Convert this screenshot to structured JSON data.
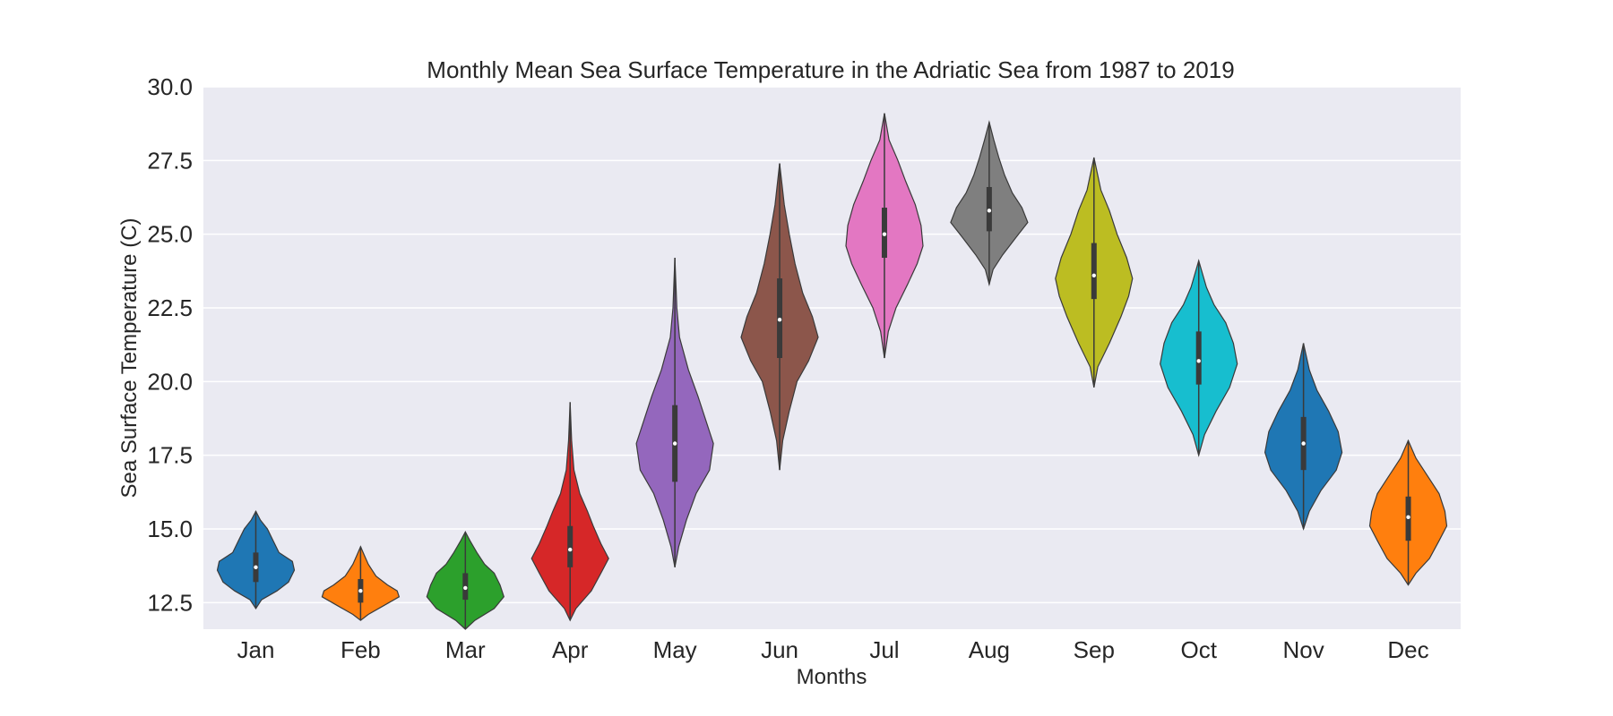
{
  "chart_data": {
    "type": "violin",
    "title": "Monthly Mean Sea Surface Temperature in the Adriatic Sea from 1987 to 2019",
    "xlabel": "Months",
    "ylabel": "Sea Surface Temperature (C)",
    "ylim": [
      11.6,
      30.0
    ],
    "yticks": [
      "12.5",
      "15.0",
      "17.5",
      "20.0",
      "22.5",
      "25.0",
      "27.5",
      "30.0"
    ],
    "grid": true,
    "categories": [
      "Jan",
      "Feb",
      "Mar",
      "Apr",
      "May",
      "Jun",
      "Jul",
      "Aug",
      "Sep",
      "Oct",
      "Nov",
      "Dec"
    ],
    "colors": [
      "#1f77b4",
      "#ff7f0e",
      "#2ca02c",
      "#d62728",
      "#9467bd",
      "#8c564b",
      "#e377c2",
      "#7f7f7f",
      "#bcbd22",
      "#17becf",
      "#1f77b4",
      "#ff7f0e"
    ],
    "series": [
      {
        "month": "Jan",
        "min": 12.3,
        "q1": 13.2,
        "median": 13.7,
        "q3": 14.2,
        "max": 15.6,
        "profile": [
          [
            12.3,
            0
          ],
          [
            12.6,
            0.15
          ],
          [
            12.9,
            0.55
          ],
          [
            13.2,
            0.85
          ],
          [
            13.6,
            1.0
          ],
          [
            13.9,
            0.95
          ],
          [
            14.2,
            0.6
          ],
          [
            14.6,
            0.45
          ],
          [
            15.0,
            0.3
          ],
          [
            15.3,
            0.12
          ],
          [
            15.6,
            0
          ]
        ]
      },
      {
        "month": "Feb",
        "min": 11.9,
        "q1": 12.5,
        "median": 12.9,
        "q3": 13.3,
        "max": 14.4,
        "profile": [
          [
            11.9,
            0
          ],
          [
            12.1,
            0.2
          ],
          [
            12.4,
            0.6
          ],
          [
            12.7,
            1.0
          ],
          [
            12.9,
            0.95
          ],
          [
            13.1,
            0.7
          ],
          [
            13.4,
            0.4
          ],
          [
            13.8,
            0.2
          ],
          [
            14.1,
            0.1
          ],
          [
            14.4,
            0
          ]
        ]
      },
      {
        "month": "Mar",
        "min": 11.6,
        "q1": 12.6,
        "median": 13.0,
        "q3": 13.5,
        "max": 14.9,
        "profile": [
          [
            11.6,
            0
          ],
          [
            11.9,
            0.25
          ],
          [
            12.3,
            0.75
          ],
          [
            12.7,
            1.0
          ],
          [
            13.1,
            0.9
          ],
          [
            13.5,
            0.75
          ],
          [
            13.8,
            0.5
          ],
          [
            14.2,
            0.3
          ],
          [
            14.6,
            0.12
          ],
          [
            14.9,
            0
          ]
        ]
      },
      {
        "month": "Apr",
        "min": 11.9,
        "q1": 13.7,
        "median": 14.3,
        "q3": 15.1,
        "max": 19.3,
        "profile": [
          [
            11.9,
            0
          ],
          [
            12.3,
            0.15
          ],
          [
            12.9,
            0.55
          ],
          [
            13.5,
            0.8
          ],
          [
            14.0,
            1.0
          ],
          [
            14.5,
            0.8
          ],
          [
            15.1,
            0.6
          ],
          [
            15.6,
            0.45
          ],
          [
            16.2,
            0.25
          ],
          [
            17.0,
            0.1
          ],
          [
            18.0,
            0.04
          ],
          [
            19.3,
            0
          ]
        ]
      },
      {
        "month": "May",
        "min": 13.7,
        "q1": 16.6,
        "median": 17.9,
        "q3": 19.2,
        "max": 24.2,
        "profile": [
          [
            13.7,
            0
          ],
          [
            14.4,
            0.1
          ],
          [
            15.3,
            0.3
          ],
          [
            16.2,
            0.55
          ],
          [
            17.0,
            0.9
          ],
          [
            17.9,
            1.0
          ],
          [
            18.7,
            0.8
          ],
          [
            19.5,
            0.6
          ],
          [
            20.4,
            0.35
          ],
          [
            21.5,
            0.12
          ],
          [
            22.5,
            0.05
          ],
          [
            24.2,
            0
          ]
        ]
      },
      {
        "month": "Jun",
        "min": 17.0,
        "q1": 20.8,
        "median": 22.1,
        "q3": 23.5,
        "max": 27.4,
        "profile": [
          [
            17.0,
            0
          ],
          [
            18.0,
            0.08
          ],
          [
            19.0,
            0.25
          ],
          [
            20.0,
            0.45
          ],
          [
            20.7,
            0.75
          ],
          [
            21.5,
            1.0
          ],
          [
            22.2,
            0.85
          ],
          [
            23.0,
            0.6
          ],
          [
            24.0,
            0.4
          ],
          [
            25.0,
            0.25
          ],
          [
            26.0,
            0.12
          ],
          [
            27.4,
            0
          ]
        ]
      },
      {
        "month": "Jul",
        "min": 20.8,
        "q1": 24.2,
        "median": 25.0,
        "q3": 25.9,
        "max": 29.1,
        "profile": [
          [
            20.8,
            0
          ],
          [
            21.7,
            0.1
          ],
          [
            22.5,
            0.3
          ],
          [
            23.3,
            0.6
          ],
          [
            24.0,
            0.85
          ],
          [
            24.6,
            1.0
          ],
          [
            25.3,
            0.95
          ],
          [
            26.0,
            0.8
          ],
          [
            26.8,
            0.55
          ],
          [
            27.5,
            0.35
          ],
          [
            28.2,
            0.12
          ],
          [
            29.1,
            0
          ]
        ]
      },
      {
        "month": "Aug",
        "min": 23.3,
        "q1": 25.1,
        "median": 25.8,
        "q3": 26.6,
        "max": 28.8,
        "profile": [
          [
            23.3,
            0
          ],
          [
            23.8,
            0.1
          ],
          [
            24.3,
            0.35
          ],
          [
            24.9,
            0.7
          ],
          [
            25.4,
            1.0
          ],
          [
            25.9,
            0.85
          ],
          [
            26.4,
            0.6
          ],
          [
            27.0,
            0.4
          ],
          [
            27.6,
            0.25
          ],
          [
            28.2,
            0.12
          ],
          [
            28.8,
            0
          ]
        ]
      },
      {
        "month": "Sep",
        "min": 19.8,
        "q1": 22.8,
        "median": 23.6,
        "q3": 24.7,
        "max": 27.6,
        "profile": [
          [
            19.8,
            0
          ],
          [
            20.5,
            0.1
          ],
          [
            21.3,
            0.4
          ],
          [
            22.2,
            0.7
          ],
          [
            22.9,
            0.9
          ],
          [
            23.5,
            1.0
          ],
          [
            24.2,
            0.85
          ],
          [
            25.0,
            0.6
          ],
          [
            25.8,
            0.4
          ],
          [
            26.5,
            0.18
          ],
          [
            27.6,
            0
          ]
        ]
      },
      {
        "month": "Oct",
        "min": 17.5,
        "q1": 19.9,
        "median": 20.7,
        "q3": 21.7,
        "max": 24.1,
        "profile": [
          [
            17.5,
            0
          ],
          [
            18.2,
            0.15
          ],
          [
            19.0,
            0.45
          ],
          [
            19.8,
            0.8
          ],
          [
            20.6,
            1.0
          ],
          [
            21.3,
            0.9
          ],
          [
            22.0,
            0.7
          ],
          [
            22.6,
            0.4
          ],
          [
            23.2,
            0.2
          ],
          [
            24.1,
            0
          ]
        ]
      },
      {
        "month": "Nov",
        "min": 15.0,
        "q1": 17.0,
        "median": 17.9,
        "q3": 18.8,
        "max": 21.3,
        "profile": [
          [
            15.0,
            0
          ],
          [
            15.6,
            0.15
          ],
          [
            16.3,
            0.45
          ],
          [
            17.0,
            0.85
          ],
          [
            17.6,
            1.0
          ],
          [
            18.3,
            0.9
          ],
          [
            19.0,
            0.65
          ],
          [
            19.7,
            0.35
          ],
          [
            20.4,
            0.15
          ],
          [
            21.3,
            0
          ]
        ]
      },
      {
        "month": "Dec",
        "min": 13.1,
        "q1": 14.6,
        "median": 15.4,
        "q3": 16.1,
        "max": 18.0,
        "profile": [
          [
            13.1,
            0
          ],
          [
            13.5,
            0.2
          ],
          [
            14.0,
            0.55
          ],
          [
            14.6,
            0.8
          ],
          [
            15.1,
            1.0
          ],
          [
            15.6,
            0.95
          ],
          [
            16.2,
            0.8
          ],
          [
            16.8,
            0.5
          ],
          [
            17.4,
            0.2
          ],
          [
            18.0,
            0
          ]
        ]
      }
    ]
  }
}
